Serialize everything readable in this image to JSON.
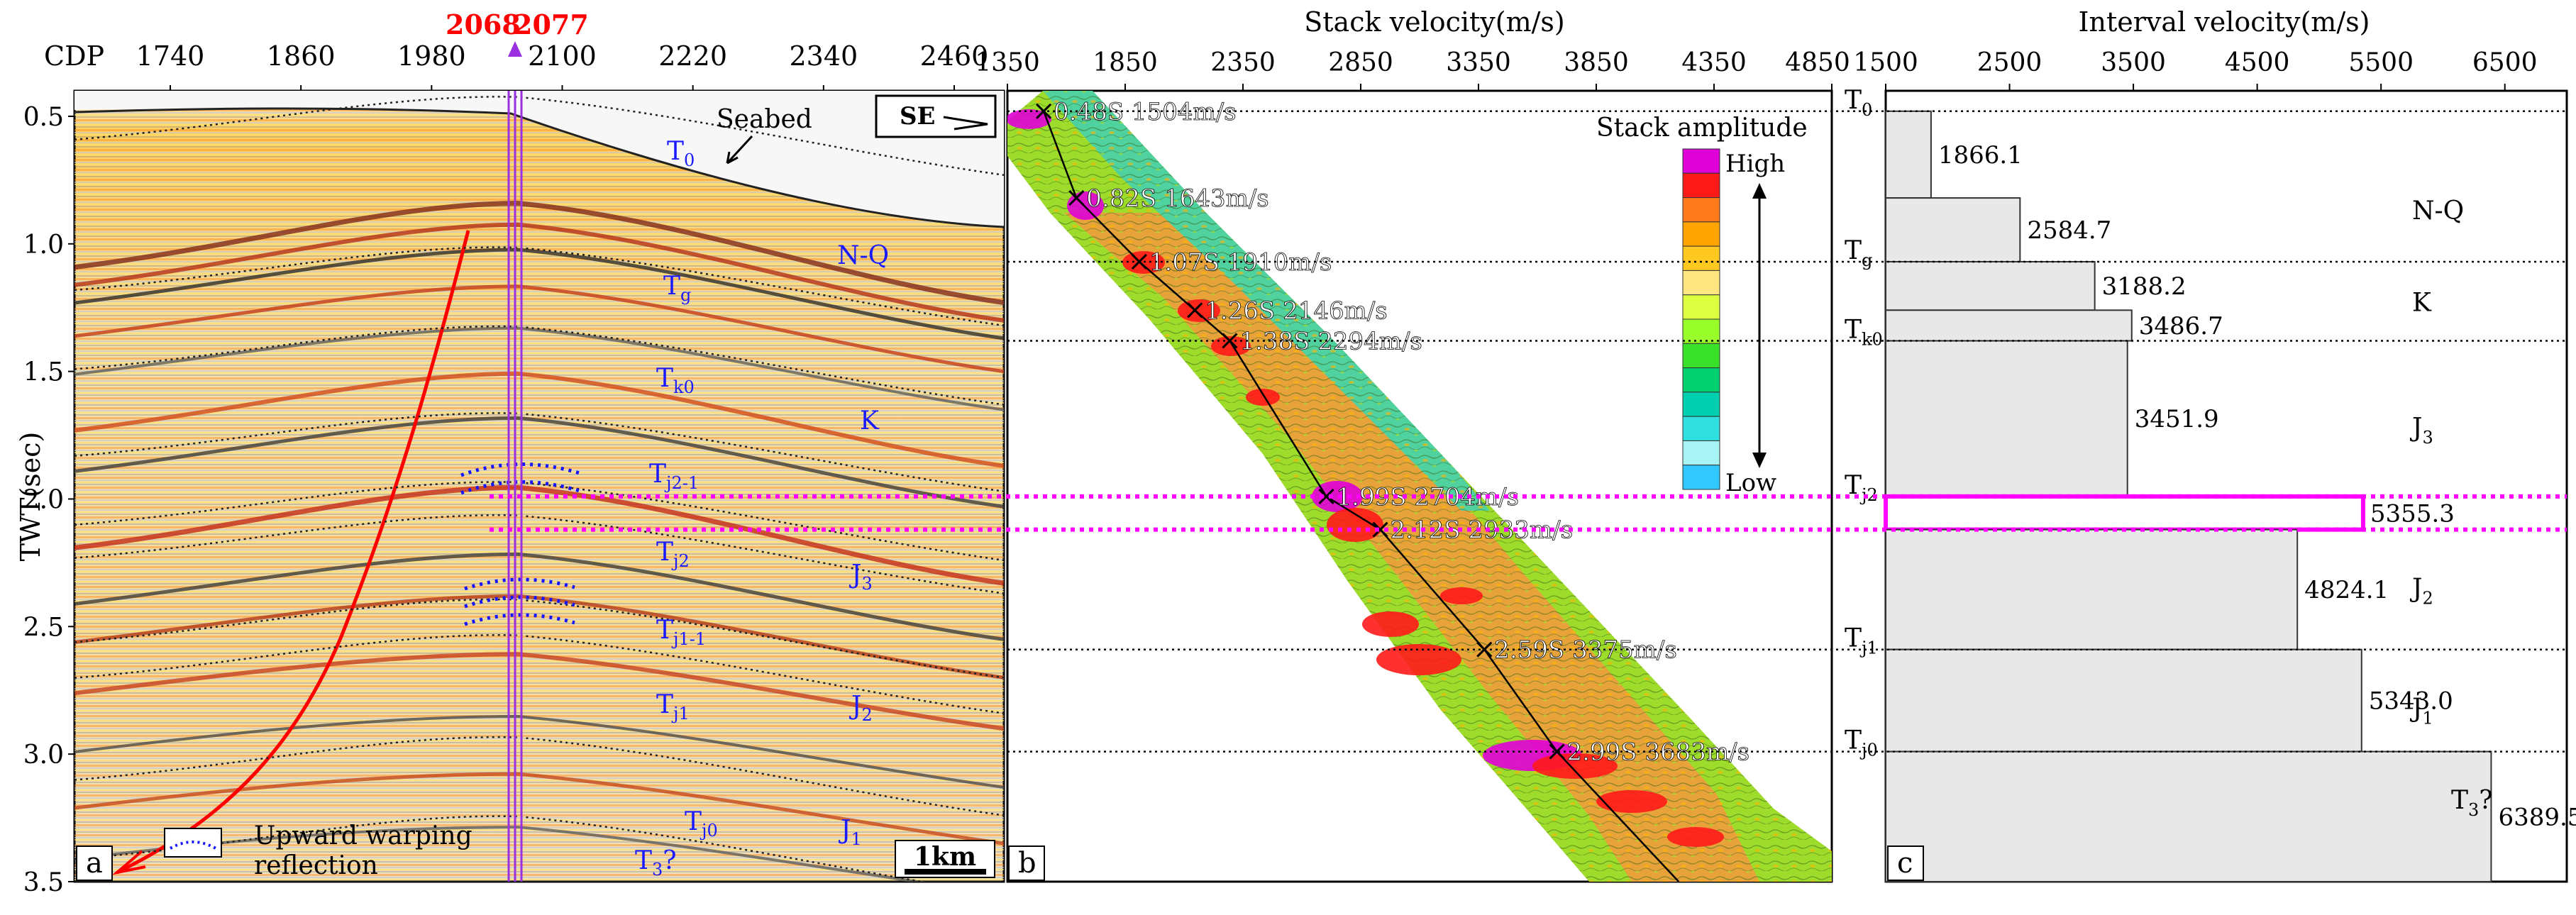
{
  "panel_a": {
    "label": "a",
    "cdp_label": "CDP",
    "cdp_ticks": [
      "1740",
      "1860",
      "1980",
      "2100",
      "2220",
      "2340",
      "2460"
    ],
    "highlight_cdps": [
      "2068",
      "2077"
    ],
    "y_label": "TWT(sec)",
    "y_ticks": [
      "0.5",
      "1.0",
      "1.5",
      "2.0",
      "2.5",
      "3.0",
      "3.5"
    ],
    "y_range": [
      0.4,
      3.5
    ],
    "direction": "SE",
    "seabed_label": "Seabed",
    "horizons": [
      "T0",
      "Tg",
      "Tk0",
      "Tj2-1",
      "Tj2",
      "Tj1-1",
      "Tj1",
      "Tj0",
      "T3?"
    ],
    "units": [
      "N-Q",
      "K",
      "J3",
      "J2",
      "J1"
    ],
    "legend": [
      "Upward warping",
      "reflection"
    ],
    "scale_bar": "1km"
  },
  "chart_data": [
    {
      "type": "scatter",
      "panel": "b",
      "title": "Stack velocity(m/s)",
      "x_ticks": [
        1350,
        1850,
        2350,
        2850,
        3350,
        3850,
        4350,
        4850
      ],
      "xlim": [
        1350,
        4850
      ],
      "ylim": [
        0.4,
        3.5
      ],
      "y_reversed": true,
      "points": [
        {
          "t": 0.48,
          "v": 1504,
          "label": "0.48S 1504m/s"
        },
        {
          "t": 0.82,
          "v": 1643,
          "label": "0.82S 1643m/s"
        },
        {
          "t": 1.07,
          "v": 1910,
          "label": "1.07S 1910m/s"
        },
        {
          "t": 1.26,
          "v": 2146,
          "label": "1.26S 2146m/s"
        },
        {
          "t": 1.38,
          "v": 2294,
          "label": "1.38S 2294m/s"
        },
        {
          "t": 1.99,
          "v": 2704,
          "label": "1.99S 2704m/s"
        },
        {
          "t": 2.12,
          "v": 2933,
          "label": "2.12S 2933m/s"
        },
        {
          "t": 2.59,
          "v": 3375,
          "label": "2.59S 3375m/s"
        },
        {
          "t": 2.99,
          "v": 3683,
          "label": "2.99S 3683m/s"
        }
      ],
      "colorbar": {
        "title": "Stack amplitude",
        "high": "High",
        "low": "Low",
        "colors": [
          "#e000d8",
          "#ff1a1a",
          "#ff7a1a",
          "#ffa400",
          "#ffc820",
          "#ffe680",
          "#dcff40",
          "#98ff28",
          "#39e12a",
          "#00d070",
          "#00d0b0",
          "#30e0e0",
          "#a8f4f4",
          "#30c8ff"
        ]
      },
      "label": "b"
    },
    {
      "type": "bar",
      "panel": "c",
      "title": "Interval velocity(m/s)",
      "x_ticks": [
        1500,
        2500,
        3500,
        4500,
        5500,
        6500
      ],
      "xlim": [
        1500,
        7000
      ],
      "ylim": [
        0.4,
        3.5
      ],
      "intervals": [
        {
          "top": 0.48,
          "bottom": 0.82,
          "value": 1866.1,
          "label": "1866.1"
        },
        {
          "top": 0.82,
          "bottom": 1.07,
          "value": 2584.7,
          "label": "2584.7"
        },
        {
          "top": 1.07,
          "bottom": 1.26,
          "value": 3188.2,
          "label": "3188.2"
        },
        {
          "top": 1.26,
          "bottom": 1.38,
          "value": 3486.7,
          "label": "3486.7"
        },
        {
          "top": 1.38,
          "bottom": 1.99,
          "value": 3451.9,
          "label": "3451.9"
        },
        {
          "top": 1.99,
          "bottom": 2.12,
          "value": 5355.3,
          "label": "5355.3",
          "highlight": true
        },
        {
          "top": 2.12,
          "bottom": 2.59,
          "value": 4824.1,
          "label": "4824.1"
        },
        {
          "top": 2.59,
          "bottom": 2.99,
          "value": 5343.0,
          "label": "5343.0"
        },
        {
          "top": 2.99,
          "bottom": 3.5,
          "value": 6389.5,
          "label": "6389.5"
        }
      ],
      "horizon_lines": [
        {
          "t": 0.48,
          "base": "T",
          "sub": "0"
        },
        {
          "t": 1.07,
          "base": "T",
          "sub": "g"
        },
        {
          "t": 1.38,
          "base": "T",
          "sub": "k0"
        },
        {
          "t": 1.99,
          "base": "T",
          "sub": "j2"
        },
        {
          "t": 2.59,
          "base": "T",
          "sub": "j1"
        },
        {
          "t": 2.99,
          "base": "T",
          "sub": "j0"
        }
      ],
      "strata": [
        {
          "t": 0.87,
          "base": "N-Q",
          "sub": ""
        },
        {
          "t": 1.23,
          "base": "K",
          "sub": ""
        },
        {
          "t": 1.72,
          "base": "J",
          "sub": "3"
        },
        {
          "t": 2.35,
          "base": "J",
          "sub": "2"
        },
        {
          "t": 2.82,
          "base": "J",
          "sub": "1"
        },
        {
          "t": 3.18,
          "base": "T",
          "sub": "3",
          "suffix": "?"
        }
      ],
      "label": "c"
    }
  ],
  "colors": {
    "highlight_magenta": "#ff00ff",
    "cdp_red": "#ff0000",
    "well_purple": "#9a30e0",
    "horizon_blue": "#2020ff",
    "fault_red": "#ff0000",
    "bar_fill": "#e8e8e8"
  }
}
